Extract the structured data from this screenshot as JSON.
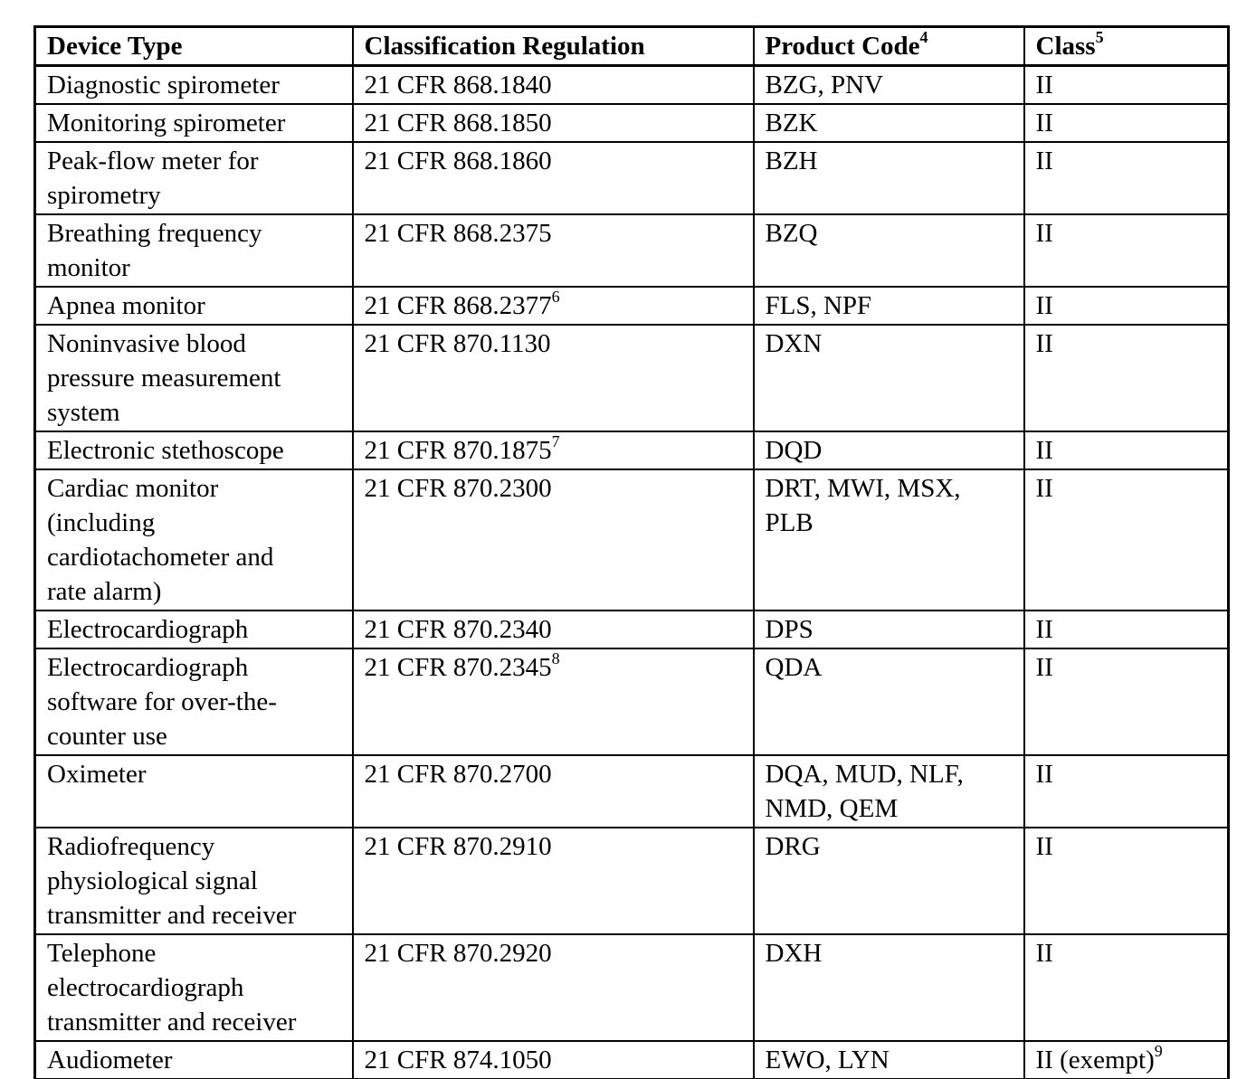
{
  "document": {
    "background_color": "#ffffff",
    "text_color": "#000000",
    "border_color": "#000000"
  },
  "table": {
    "columns": [
      {
        "label": "Device Type",
        "sup": ""
      },
      {
        "label": "Classification Regulation",
        "sup": ""
      },
      {
        "label": "Product Code",
        "sup": "4"
      },
      {
        "label": "Class",
        "sup": "5"
      }
    ],
    "rows": [
      {
        "device": "Diagnostic spirometer",
        "regulation": "21 CFR 868.1840",
        "regulation_sup": "",
        "codes": "BZG, PNV",
        "class": "II",
        "class_sup": ""
      },
      {
        "device": "Monitoring spirometer",
        "regulation": "21 CFR 868.1850",
        "regulation_sup": "",
        "codes": "BZK",
        "class": "II",
        "class_sup": ""
      },
      {
        "device": "Peak-flow meter for\nspirometry",
        "regulation": "21 CFR 868.1860",
        "regulation_sup": "",
        "codes": "BZH",
        "class": "II",
        "class_sup": ""
      },
      {
        "device": "Breathing frequency\nmonitor",
        "regulation": "21 CFR 868.2375",
        "regulation_sup": "",
        "codes": "BZQ",
        "class": "II",
        "class_sup": ""
      },
      {
        "device": "Apnea monitor",
        "regulation": "21 CFR 868.2377",
        "regulation_sup": "6",
        "codes": "FLS, NPF",
        "class": "II",
        "class_sup": ""
      },
      {
        "device": "Noninvasive blood\npressure measurement\nsystem",
        "regulation": "21 CFR 870.1130",
        "regulation_sup": "",
        "codes": "DXN",
        "class": "II",
        "class_sup": ""
      },
      {
        "device": "Electronic stethoscope",
        "regulation": "21 CFR 870.1875",
        "regulation_sup": "7",
        "codes": "DQD",
        "class": "II",
        "class_sup": ""
      },
      {
        "device": "Cardiac monitor\n(including\ncardiotachometer and\nrate alarm)",
        "regulation": "21 CFR 870.2300",
        "regulation_sup": "",
        "codes": "DRT, MWI, MSX,\nPLB",
        "class": "II",
        "class_sup": ""
      },
      {
        "device": "Electrocardiograph",
        "regulation": "21 CFR 870.2340",
        "regulation_sup": "",
        "codes": "DPS",
        "class": "II",
        "class_sup": ""
      },
      {
        "device": "Electrocardiograph\nsoftware for over-the-\ncounter use",
        "regulation": "21 CFR 870.2345",
        "regulation_sup": "8",
        "codes": "QDA",
        "class": "II",
        "class_sup": ""
      },
      {
        "device": "Oximeter",
        "regulation": "21 CFR 870.2700",
        "regulation_sup": "",
        "codes": "DQA, MUD, NLF,\nNMD, QEM",
        "class": "II",
        "class_sup": ""
      },
      {
        "device": "Radiofrequency\nphysiological signal\ntransmitter and receiver",
        "regulation": "21 CFR 870.2910",
        "regulation_sup": "",
        "codes": "DRG",
        "class": "II",
        "class_sup": ""
      },
      {
        "device": "Telephone\nelectrocardiograph\ntransmitter and receiver",
        "regulation": "21 CFR 870.2920",
        "regulation_sup": "",
        "codes": "DXH",
        "class": "II",
        "class_sup": ""
      },
      {
        "device": "Audiometer",
        "regulation": "21 CFR 874.1050",
        "regulation_sup": "",
        "codes": "EWO, LYN",
        "class": "II (exempt)",
        "class_sup": "9"
      }
    ]
  }
}
